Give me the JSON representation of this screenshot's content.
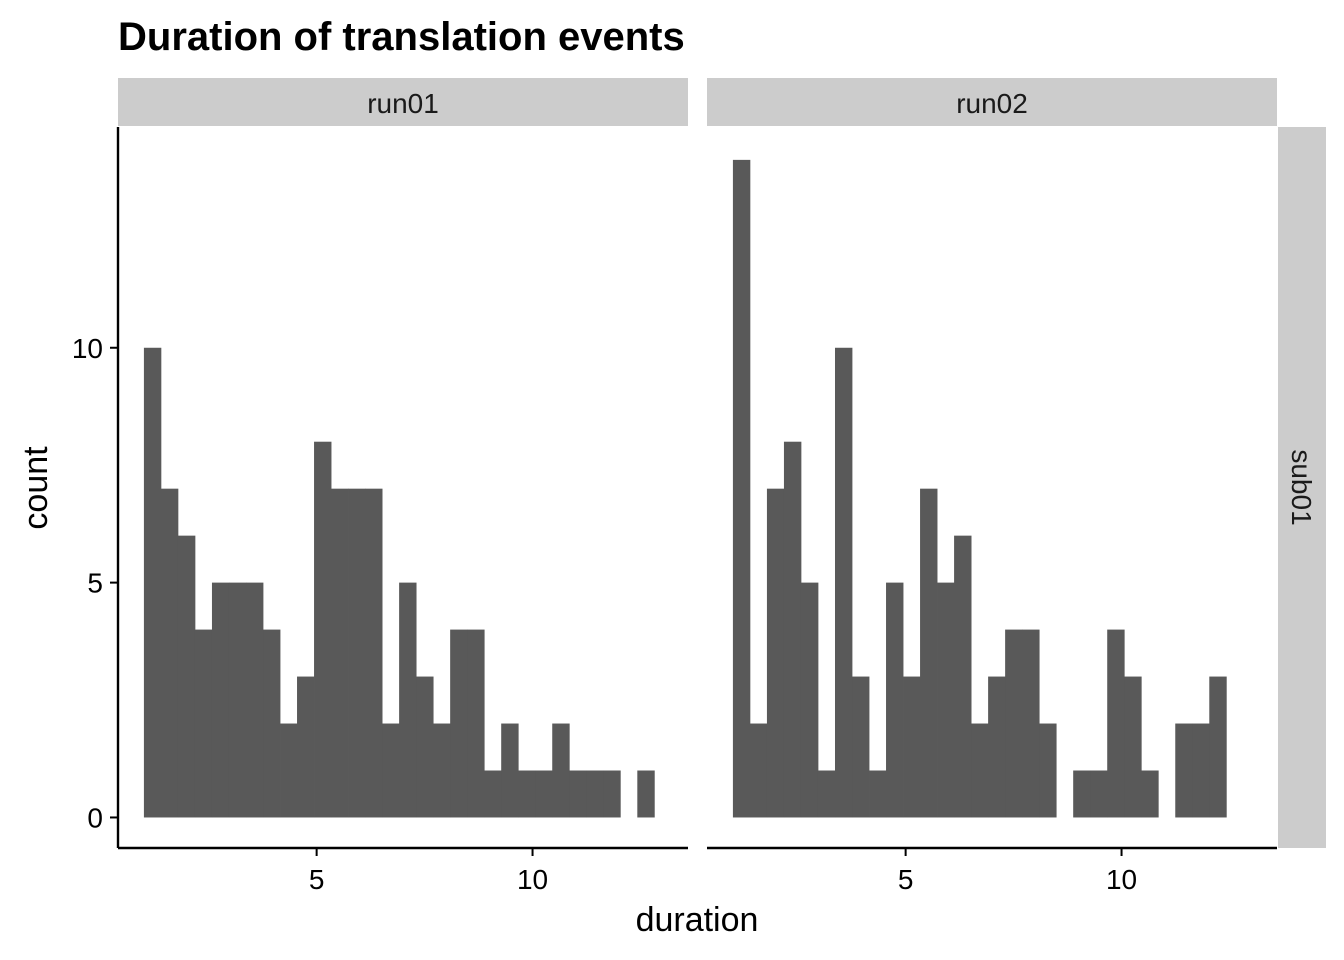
{
  "chart_data": {
    "type": "bar",
    "title": "Duration of translation events",
    "xlabel": "duration",
    "ylabel": "count",
    "xlim": [
      0.4,
      13.6
    ],
    "ylim": [
      -0.65,
      14.7
    ],
    "x_ticks": [
      5,
      10
    ],
    "y_ticks": [
      0,
      5,
      10
    ],
    "bin_width": 0.394,
    "bar_color": "#595959",
    "strip_color": "#cccccc",
    "row_facet": "sub01",
    "facets": [
      {
        "name": "run01",
        "bins": [
          {
            "x": 1.0,
            "count": 10
          },
          {
            "x": 1.394,
            "count": 7
          },
          {
            "x": 1.788,
            "count": 6
          },
          {
            "x": 2.182,
            "count": 4
          },
          {
            "x": 2.576,
            "count": 5
          },
          {
            "x": 2.97,
            "count": 5
          },
          {
            "x": 3.364,
            "count": 5
          },
          {
            "x": 3.758,
            "count": 4
          },
          {
            "x": 4.152,
            "count": 2
          },
          {
            "x": 4.546,
            "count": 3
          },
          {
            "x": 4.94,
            "count": 8
          },
          {
            "x": 5.334,
            "count": 7
          },
          {
            "x": 5.728,
            "count": 7
          },
          {
            "x": 6.122,
            "count": 7
          },
          {
            "x": 6.516,
            "count": 2
          },
          {
            "x": 6.91,
            "count": 5
          },
          {
            "x": 7.304,
            "count": 3
          },
          {
            "x": 7.698,
            "count": 2
          },
          {
            "x": 8.092,
            "count": 4
          },
          {
            "x": 8.486,
            "count": 4
          },
          {
            "x": 8.88,
            "count": 1
          },
          {
            "x": 9.274,
            "count": 2
          },
          {
            "x": 9.668,
            "count": 1
          },
          {
            "x": 10.062,
            "count": 1
          },
          {
            "x": 10.456,
            "count": 2
          },
          {
            "x": 10.85,
            "count": 1
          },
          {
            "x": 11.244,
            "count": 1
          },
          {
            "x": 11.638,
            "count": 1
          },
          {
            "x": 12.426,
            "count": 1
          }
        ]
      },
      {
        "name": "run02",
        "bins": [
          {
            "x": 1.0,
            "count": 14
          },
          {
            "x": 1.394,
            "count": 2
          },
          {
            "x": 1.788,
            "count": 7
          },
          {
            "x": 2.182,
            "count": 8
          },
          {
            "x": 2.576,
            "count": 5
          },
          {
            "x": 2.97,
            "count": 1
          },
          {
            "x": 3.364,
            "count": 10
          },
          {
            "x": 3.758,
            "count": 3
          },
          {
            "x": 4.152,
            "count": 1
          },
          {
            "x": 4.546,
            "count": 5
          },
          {
            "x": 4.94,
            "count": 3
          },
          {
            "x": 5.334,
            "count": 7
          },
          {
            "x": 5.728,
            "count": 5
          },
          {
            "x": 6.122,
            "count": 6
          },
          {
            "x": 6.516,
            "count": 2
          },
          {
            "x": 6.91,
            "count": 3
          },
          {
            "x": 7.304,
            "count": 4
          },
          {
            "x": 7.698,
            "count": 4
          },
          {
            "x": 8.092,
            "count": 2
          },
          {
            "x": 8.88,
            "count": 1
          },
          {
            "x": 9.274,
            "count": 1
          },
          {
            "x": 9.668,
            "count": 4
          },
          {
            "x": 10.062,
            "count": 3
          },
          {
            "x": 10.456,
            "count": 1
          },
          {
            "x": 11.244,
            "count": 2
          },
          {
            "x": 11.638,
            "count": 2
          },
          {
            "x": 12.032,
            "count": 3
          }
        ]
      }
    ]
  }
}
